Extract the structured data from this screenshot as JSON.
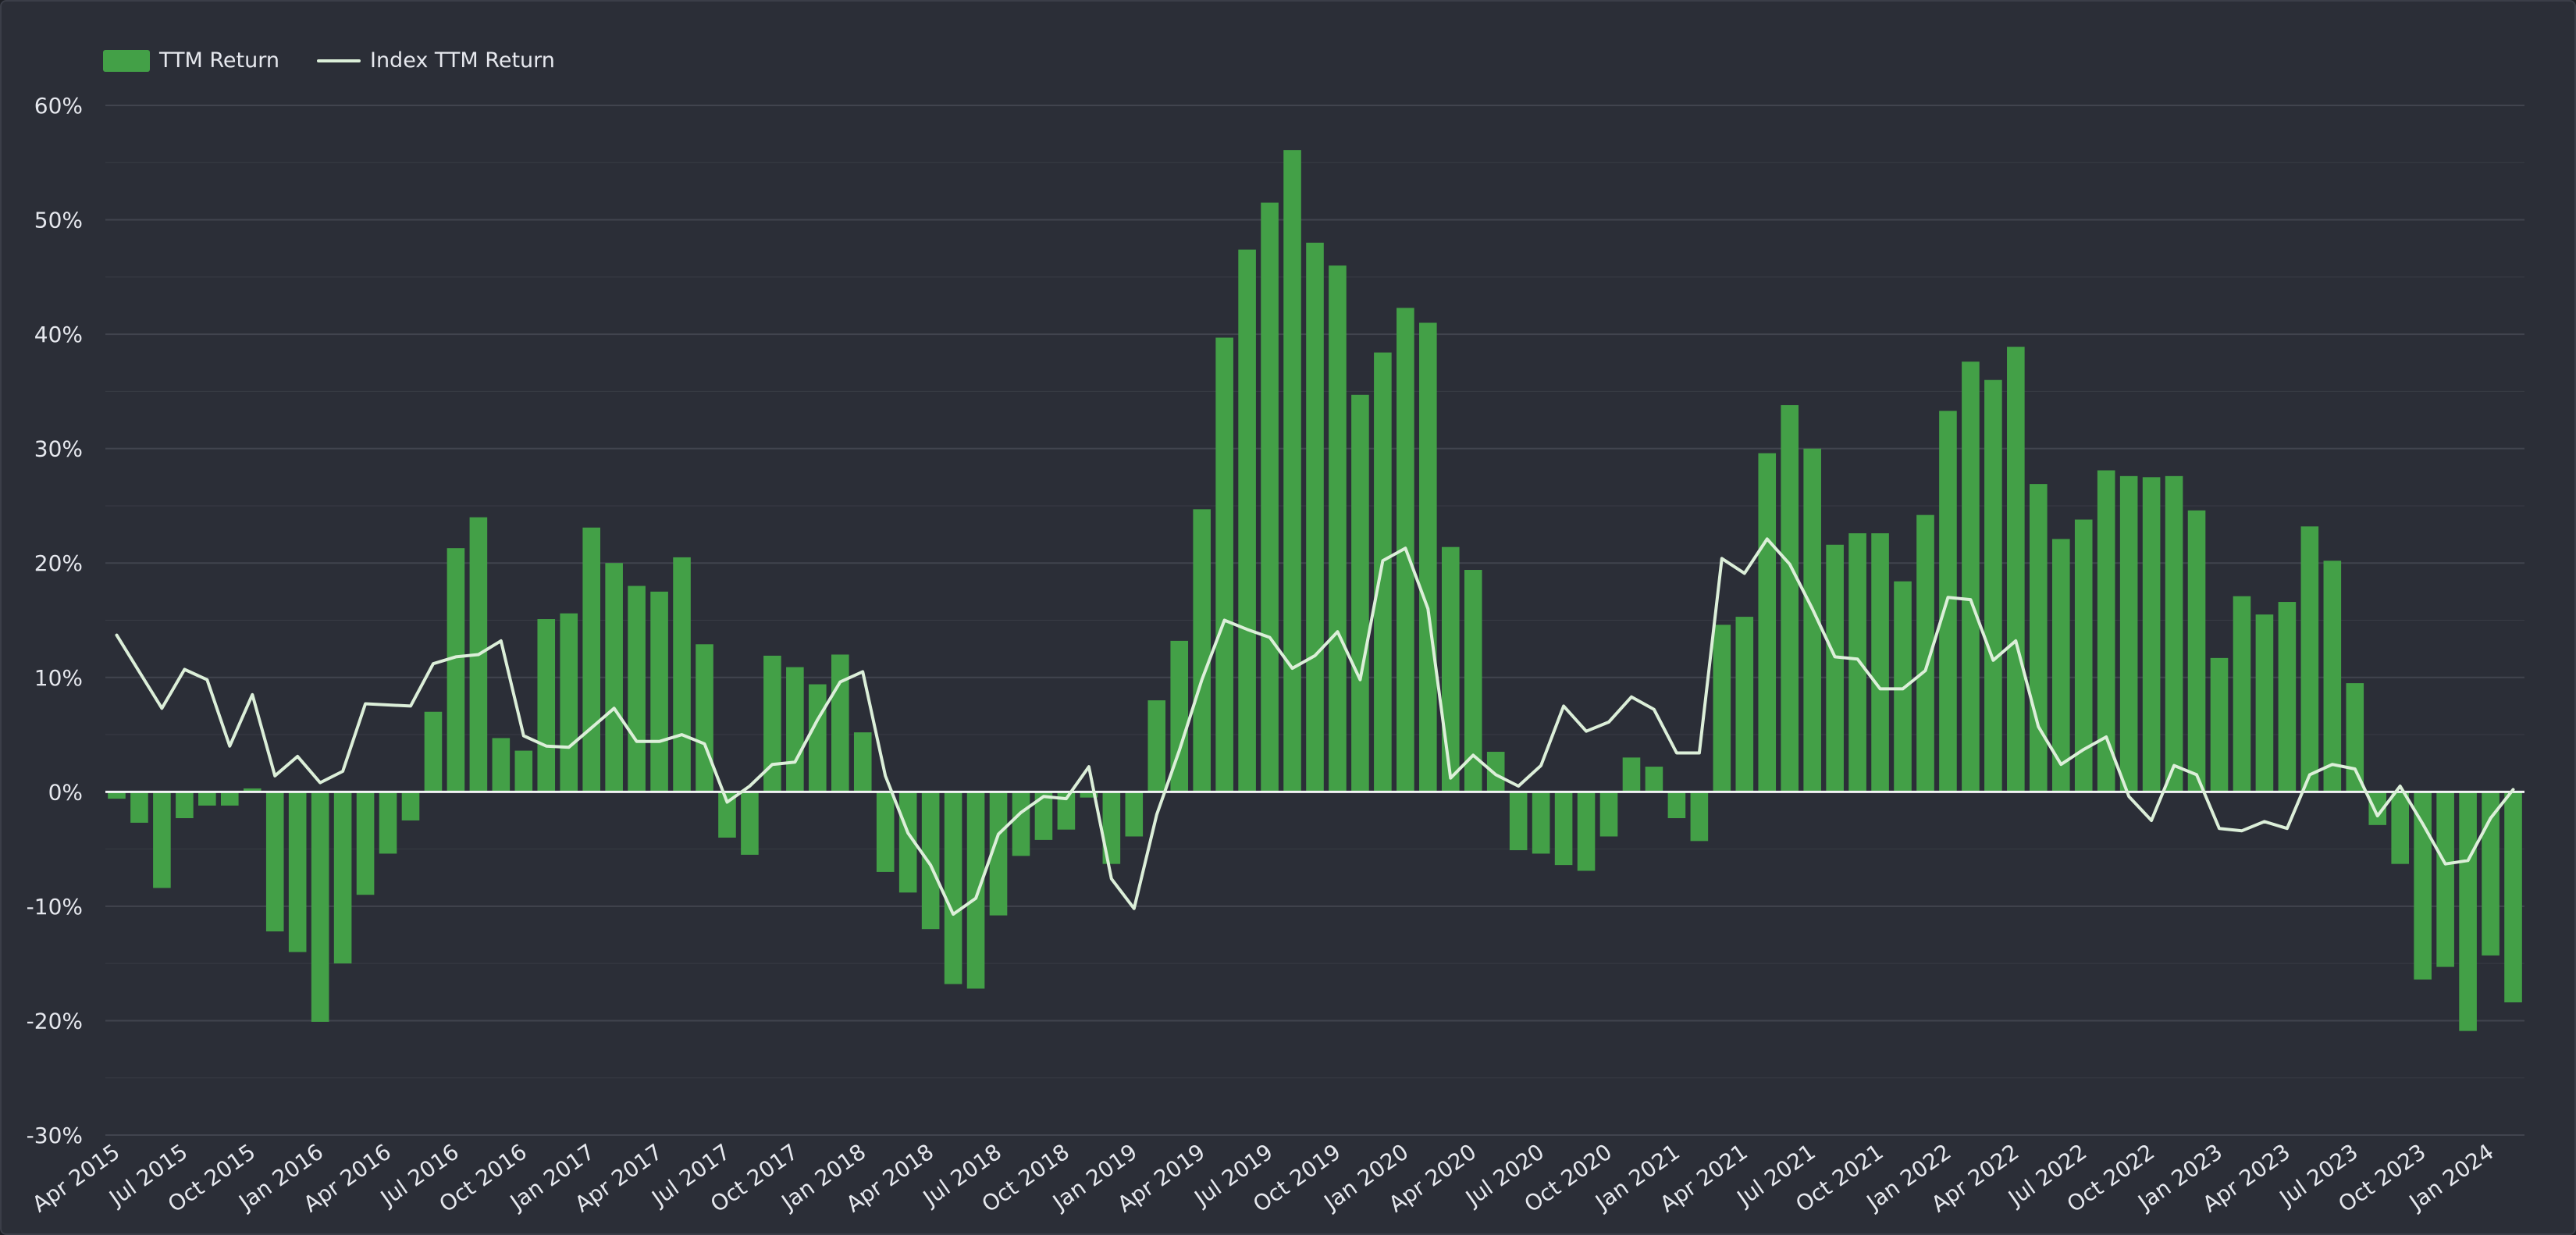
{
  "colors": {
    "background": "#2b2e37",
    "bar": "#43a047",
    "line": "#dcefd9",
    "grid": "#41444e",
    "text": "#e6e8ee"
  },
  "legend": {
    "bar_label": "TTM Return",
    "line_label": "Index TTM Return"
  },
  "chart_data": {
    "type": "bar",
    "title": "",
    "xlabel": "",
    "ylabel": "",
    "ylim": [
      -30,
      60
    ],
    "y_ticks": [
      "-30%",
      "-20%",
      "-10%",
      "0%",
      "10%",
      "20%",
      "30%",
      "40%",
      "50%",
      "60%"
    ],
    "grid": true,
    "legend_position": "top-left",
    "x": [
      "Apr 2015",
      "May 2015",
      "Jun 2015",
      "Jul 2015",
      "Aug 2015",
      "Sep 2015",
      "Oct 2015",
      "Nov 2015",
      "Dec 2015",
      "Jan 2016",
      "Feb 2016",
      "Mar 2016",
      "Apr 2016",
      "May 2016",
      "Jun 2016",
      "Jul 2016",
      "Aug 2016",
      "Sep 2016",
      "Oct 2016",
      "Nov 2016",
      "Dec 2016",
      "Jan 2017",
      "Feb 2017",
      "Mar 2017",
      "Apr 2017",
      "May 2017",
      "Jun 2017",
      "Jul 2017",
      "Aug 2017",
      "Sep 2017",
      "Oct 2017",
      "Nov 2017",
      "Dec 2017",
      "Jan 2018",
      "Feb 2018",
      "Mar 2018",
      "Apr 2018",
      "May 2018",
      "Jun 2018",
      "Jul 2018",
      "Aug 2018",
      "Sep 2018",
      "Oct 2018",
      "Nov 2018",
      "Dec 2018",
      "Jan 2019",
      "Feb 2019",
      "Mar 2019",
      "Apr 2019",
      "May 2019",
      "Jun 2019",
      "Jul 2019",
      "Aug 2019",
      "Sep 2019",
      "Oct 2019",
      "Nov 2019",
      "Dec 2019",
      "Jan 2020",
      "Feb 2020",
      "Mar 2020",
      "Apr 2020",
      "May 2020",
      "Jun 2020",
      "Jul 2020",
      "Aug 2020",
      "Sep 2020",
      "Oct 2020",
      "Nov 2020",
      "Dec 2020",
      "Jan 2021",
      "Feb 2021",
      "Mar 2021",
      "Apr 2021",
      "May 2021",
      "Jun 2021",
      "Jul 2021",
      "Aug 2021",
      "Sep 2021",
      "Oct 2021",
      "Nov 2021",
      "Dec 2021",
      "Jan 2022",
      "Feb 2022",
      "Mar 2022",
      "Apr 2022",
      "May 2022",
      "Jun 2022",
      "Jul 2022",
      "Aug 2022",
      "Sep 2022",
      "Oct 2022",
      "Nov 2022",
      "Dec 2022",
      "Jan 2023",
      "Feb 2023",
      "Mar 2023",
      "Apr 2023",
      "May 2023",
      "Jun 2023",
      "Jul 2023",
      "Aug 2023",
      "Sep 2023",
      "Oct 2023",
      "Nov 2023",
      "Dec 2023",
      "Jan 2024",
      "Feb 2024"
    ],
    "x_tick_labels": [
      "Apr 2015",
      "Jul 2015",
      "Oct 2015",
      "Jan 2016",
      "Apr 2016",
      "Jul 2016",
      "Oct 2016",
      "Jan 2017",
      "Apr 2017",
      "Jul 2017",
      "Oct 2017",
      "Jan 2018",
      "Apr 2018",
      "Jul 2018",
      "Oct 2018",
      "Jan 2019",
      "Apr 2019",
      "Jul 2019",
      "Oct 2019",
      "Jan 2020",
      "Apr 2020",
      "Jul 2020",
      "Oct 2020",
      "Jan 2021",
      "Apr 2021",
      "Jul 2021",
      "Oct 2021",
      "Jan 2022",
      "Apr 2022",
      "Jul 2022",
      "Oct 2022",
      "Jan 2023",
      "Apr 2023",
      "Jul 2023",
      "Oct 2023",
      "Jan 2024"
    ],
    "series": [
      {
        "name": "TTM Return",
        "type": "bar",
        "values": [
          -0.6,
          -2.7,
          -8.4,
          -2.3,
          -1.2,
          -1.2,
          0.3,
          -12.2,
          -14.0,
          -20.1,
          -15.0,
          -9.0,
          -5.4,
          -2.5,
          7.0,
          21.3,
          24.0,
          4.7,
          3.6,
          15.1,
          15.6,
          23.1,
          20.0,
          18.0,
          17.5,
          20.5,
          12.9,
          -4.0,
          -5.5,
          11.9,
          10.9,
          9.4,
          12.0,
          5.2,
          -7.0,
          -8.8,
          -12.0,
          -16.8,
          -17.2,
          -10.8,
          -5.6,
          -4.2,
          -3.3,
          -0.5,
          -6.3,
          -3.9,
          8.0,
          13.2,
          24.7,
          39.7,
          47.4,
          51.5,
          56.1,
          48.0,
          46.0,
          34.7,
          38.4,
          42.3,
          41.0,
          21.4,
          19.4,
          3.5,
          -5.1,
          -5.4,
          -6.4,
          -6.9,
          -3.9,
          3.0,
          2.2,
          -2.3,
          -4.3,
          14.6,
          15.3,
          29.6,
          33.8,
          30.0,
          21.6,
          22.6,
          22.6,
          18.4,
          24.2,
          33.3,
          37.6,
          36.0,
          38.9,
          26.9,
          22.1,
          23.8,
          28.1,
          27.6,
          27.5,
          27.6,
          24.6,
          11.7,
          17.1,
          15.5,
          16.6,
          23.2,
          20.2,
          9.5,
          -2.9,
          -6.3,
          -16.4,
          -15.3,
          -20.9,
          -14.3,
          -18.4
        ]
      },
      {
        "name": "Index TTM Return",
        "type": "line",
        "values": [
          13.7,
          10.5,
          7.3,
          10.7,
          9.8,
          4.0,
          8.5,
          1.4,
          3.1,
          0.8,
          1.8,
          7.7,
          7.6,
          7.5,
          11.2,
          11.8,
          12.0,
          13.2,
          4.9,
          4.0,
          3.9,
          5.6,
          7.3,
          4.4,
          4.4,
          5.0,
          4.2,
          -0.9,
          0.5,
          2.4,
          2.6,
          6.3,
          9.6,
          10.5,
          1.4,
          -3.6,
          -6.4,
          -10.7,
          -9.3,
          -3.7,
          -1.8,
          -0.4,
          -0.6,
          2.2,
          -7.6,
          -10.2,
          -2.0,
          3.6,
          9.8,
          15.0,
          14.2,
          13.5,
          10.8,
          11.9,
          14.0,
          9.8,
          20.2,
          21.3,
          16.0,
          1.2,
          3.2,
          1.5,
          0.5,
          2.3,
          7.5,
          5.3,
          6.1,
          8.3,
          7.2,
          3.4,
          3.4,
          20.4,
          19.1,
          22.1,
          19.9,
          16.0,
          11.8,
          11.6,
          9.0,
          9.0,
          10.6,
          17.0,
          16.8,
          11.5,
          13.2,
          5.7,
          2.4,
          3.7,
          4.8,
          -0.4,
          -2.5,
          2.3,
          1.5,
          -3.2,
          -3.4,
          -2.6,
          -3.2,
          1.5,
          2.4,
          2.0,
          -2.1,
          0.5,
          -2.8,
          -6.3,
          -6.0,
          -2.3,
          0.2
        ]
      }
    ]
  }
}
